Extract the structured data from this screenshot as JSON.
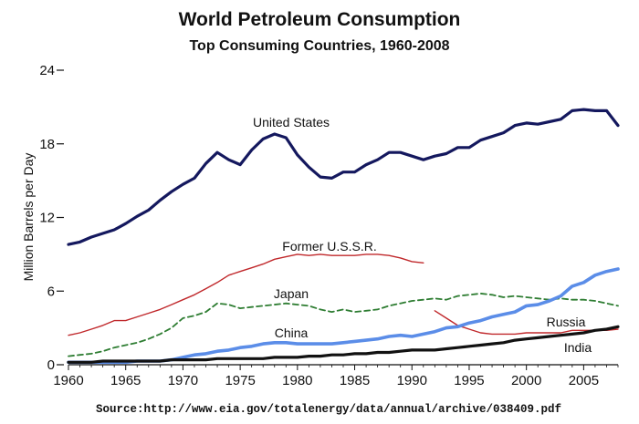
{
  "chart_data": {
    "type": "line",
    "title": "World Petroleum Consumption",
    "subtitle": "Top Consuming Countries, 1960-2008",
    "ylabel": "Million Barrels per Day",
    "xlabel": "",
    "xlim": [
      1960,
      2008
    ],
    "ylim": [
      0,
      24
    ],
    "xticks": [
      "1960",
      "1965",
      "1970",
      "1975",
      "1980",
      "1985",
      "1990",
      "1995",
      "2000",
      "2005"
    ],
    "yticks": [
      "0",
      "6",
      "12",
      "18",
      "24"
    ],
    "source": "Source:http://www.eia.gov/totalenergy/data/annual/archive/038409.pdf",
    "grid": false,
    "series": [
      {
        "name": "United States",
        "color": "#14185e",
        "x": [
          1960,
          1961,
          1962,
          1963,
          1964,
          1965,
          1966,
          1967,
          1968,
          1969,
          1970,
          1971,
          1972,
          1973,
          1974,
          1975,
          1976,
          1977,
          1978,
          1979,
          1980,
          1981,
          1982,
          1983,
          1984,
          1985,
          1986,
          1987,
          1988,
          1989,
          1990,
          1991,
          1992,
          1993,
          1994,
          1995,
          1996,
          1997,
          1998,
          1999,
          2000,
          2001,
          2002,
          2003,
          2004,
          2005,
          2006,
          2007,
          2008
        ],
        "values": [
          9.8,
          10.0,
          10.4,
          10.7,
          11.0,
          11.5,
          12.1,
          12.6,
          13.4,
          14.1,
          14.7,
          15.2,
          16.4,
          17.3,
          16.7,
          16.3,
          17.5,
          18.4,
          18.8,
          18.5,
          17.1,
          16.1,
          15.3,
          15.2,
          15.7,
          15.7,
          16.3,
          16.7,
          17.3,
          17.3,
          17.0,
          16.7,
          17.0,
          17.2,
          17.7,
          17.7,
          18.3,
          18.6,
          18.9,
          19.5,
          19.7,
          19.6,
          19.8,
          20.0,
          20.7,
          20.8,
          20.7,
          20.7,
          19.5
        ]
      },
      {
        "name": "Former U.S.S.R.",
        "color": "#c0282b",
        "x": [
          1960,
          1961,
          1962,
          1963,
          1964,
          1965,
          1966,
          1967,
          1968,
          1969,
          1970,
          1971,
          1972,
          1973,
          1974,
          1975,
          1976,
          1977,
          1978,
          1979,
          1980,
          1981,
          1982,
          1983,
          1984,
          1985,
          1986,
          1987,
          1988,
          1989,
          1990,
          1991
        ],
        "values": [
          2.4,
          2.6,
          2.9,
          3.2,
          3.6,
          3.6,
          3.9,
          4.2,
          4.5,
          4.9,
          5.3,
          5.7,
          6.2,
          6.7,
          7.3,
          7.6,
          7.9,
          8.2,
          8.6,
          8.8,
          9.0,
          8.9,
          9.0,
          8.9,
          8.9,
          8.9,
          9.0,
          9.0,
          8.9,
          8.7,
          8.4,
          8.3
        ]
      },
      {
        "name": "Russia",
        "color": "#c0282b",
        "x": [
          1992,
          1993,
          1994,
          1995,
          1996,
          1997,
          1998,
          1999,
          2000,
          2001,
          2002,
          2003,
          2004,
          2005,
          2006,
          2007,
          2008
        ],
        "values": [
          4.4,
          3.8,
          3.2,
          2.9,
          2.6,
          2.5,
          2.5,
          2.5,
          2.6,
          2.6,
          2.6,
          2.6,
          2.8,
          2.8,
          2.8,
          2.8,
          2.9
        ]
      },
      {
        "name": "Japan",
        "color": "#2e7d32",
        "dashed": true,
        "x": [
          1960,
          1961,
          1962,
          1963,
          1964,
          1965,
          1966,
          1967,
          1968,
          1969,
          1970,
          1971,
          1972,
          1973,
          1974,
          1975,
          1976,
          1977,
          1978,
          1979,
          1980,
          1981,
          1982,
          1983,
          1984,
          1985,
          1986,
          1987,
          1988,
          1989,
          1990,
          1991,
          1992,
          1993,
          1994,
          1995,
          1996,
          1997,
          1998,
          1999,
          2000,
          2001,
          2002,
          2003,
          2004,
          2005,
          2006,
          2007,
          2008
        ],
        "values": [
          0.7,
          0.8,
          0.9,
          1.1,
          1.4,
          1.6,
          1.8,
          2.1,
          2.5,
          3.0,
          3.8,
          4.0,
          4.3,
          5.0,
          4.9,
          4.6,
          4.7,
          4.8,
          4.9,
          5.0,
          4.9,
          4.8,
          4.5,
          4.3,
          4.5,
          4.3,
          4.4,
          4.5,
          4.8,
          5.0,
          5.2,
          5.3,
          5.4,
          5.3,
          5.6,
          5.7,
          5.8,
          5.7,
          5.5,
          5.6,
          5.5,
          5.4,
          5.3,
          5.4,
          5.3,
          5.3,
          5.2,
          5.0,
          4.8
        ]
      },
      {
        "name": "China",
        "color": "#5b8de8",
        "x": [
          1960,
          1961,
          1962,
          1963,
          1964,
          1965,
          1966,
          1967,
          1968,
          1969,
          1970,
          1971,
          1972,
          1973,
          1974,
          1975,
          1976,
          1977,
          1978,
          1979,
          1980,
          1981,
          1982,
          1983,
          1984,
          1985,
          1986,
          1987,
          1988,
          1989,
          1990,
          1991,
          1992,
          1993,
          1994,
          1995,
          1996,
          1997,
          1998,
          1999,
          2000,
          2001,
          2002,
          2003,
          2004,
          2005,
          2006,
          2007,
          2008
        ],
        "values": [
          0.2,
          0.2,
          0.2,
          0.2,
          0.2,
          0.2,
          0.3,
          0.3,
          0.3,
          0.4,
          0.6,
          0.8,
          0.9,
          1.1,
          1.2,
          1.4,
          1.5,
          1.7,
          1.8,
          1.8,
          1.7,
          1.7,
          1.7,
          1.7,
          1.8,
          1.9,
          2.0,
          2.1,
          2.3,
          2.4,
          2.3,
          2.5,
          2.7,
          3.0,
          3.1,
          3.4,
          3.6,
          3.9,
          4.1,
          4.3,
          4.8,
          4.9,
          5.2,
          5.6,
          6.4,
          6.7,
          7.3,
          7.6,
          7.8
        ]
      },
      {
        "name": "India",
        "color": "#111111",
        "x": [
          1960,
          1961,
          1962,
          1963,
          1964,
          1965,
          1966,
          1967,
          1968,
          1969,
          1970,
          1971,
          1972,
          1973,
          1974,
          1975,
          1976,
          1977,
          1978,
          1979,
          1980,
          1981,
          1982,
          1983,
          1984,
          1985,
          1986,
          1987,
          1988,
          1989,
          1990,
          1991,
          1992,
          1993,
          1994,
          1995,
          1996,
          1997,
          1998,
          1999,
          2000,
          2001,
          2002,
          2003,
          2004,
          2005,
          2006,
          2007,
          2008
        ],
        "values": [
          0.2,
          0.2,
          0.2,
          0.3,
          0.3,
          0.3,
          0.3,
          0.3,
          0.3,
          0.4,
          0.4,
          0.4,
          0.4,
          0.5,
          0.5,
          0.5,
          0.5,
          0.5,
          0.6,
          0.6,
          0.6,
          0.7,
          0.7,
          0.8,
          0.8,
          0.9,
          0.9,
          1.0,
          1.0,
          1.1,
          1.2,
          1.2,
          1.2,
          1.3,
          1.4,
          1.5,
          1.6,
          1.7,
          1.8,
          2.0,
          2.1,
          2.2,
          2.3,
          2.4,
          2.5,
          2.6,
          2.8,
          2.9,
          3.1
        ]
      }
    ]
  }
}
